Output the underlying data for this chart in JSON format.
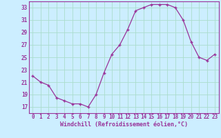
{
  "x": [
    0,
    1,
    2,
    3,
    4,
    5,
    6,
    7,
    8,
    9,
    10,
    11,
    12,
    13,
    14,
    15,
    16,
    17,
    18,
    19,
    20,
    21,
    22,
    23
  ],
  "y": [
    22,
    21,
    20.5,
    18.5,
    18,
    17.5,
    17.5,
    17,
    19,
    22.5,
    25.5,
    27,
    29.5,
    32.5,
    33,
    33.5,
    33.5,
    33.5,
    33,
    31,
    27.5,
    25,
    24.5,
    25.5
  ],
  "line_color": "#993399",
  "marker": "+",
  "bg_color": "#cceeff",
  "grid_color": "#aaddcc",
  "xlabel": "Windchill (Refroidissement éolien,°C)",
  "ylim": [
    16,
    34
  ],
  "yticks": [
    17,
    19,
    21,
    23,
    25,
    27,
    29,
    31,
    33
  ],
  "xticks": [
    0,
    1,
    2,
    3,
    4,
    5,
    6,
    7,
    8,
    9,
    10,
    11,
    12,
    13,
    14,
    15,
    16,
    17,
    18,
    19,
    20,
    21,
    22,
    23
  ],
  "axis_color": "#993399",
  "label_color": "#993399",
  "tick_fontsize": 5.5,
  "xlabel_fontsize": 6.0
}
